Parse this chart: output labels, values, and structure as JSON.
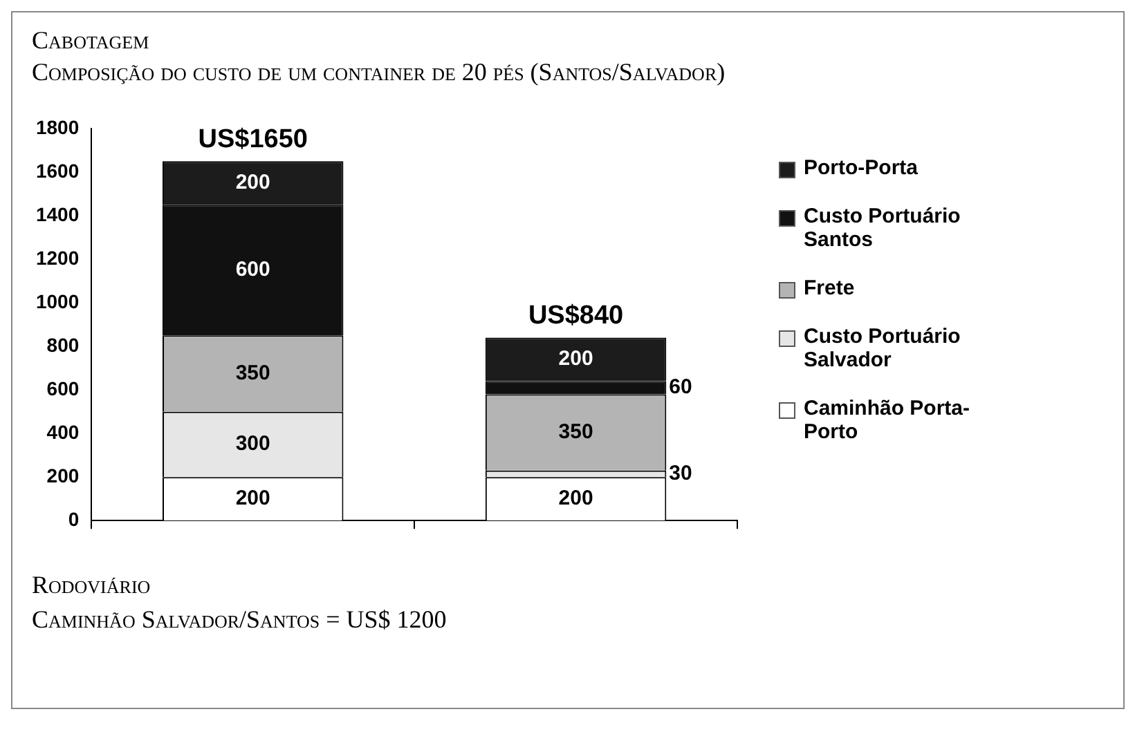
{
  "chart_data": {
    "type": "bar",
    "title": "Cabotagem",
    "subtitle": "Composição do custo de um container de 20 pés (Santos/Salvador)",
    "categories": [
      null,
      null
    ],
    "stacked": true,
    "series": [
      {
        "name": "Caminhão Porta-Porto",
        "color": "#ffffff",
        "values": [
          200,
          200
        ]
      },
      {
        "name": "Custo Portuário Salvador",
        "color": "#e6e6e6",
        "values": [
          300,
          30
        ]
      },
      {
        "name": "Frete",
        "color": "#b4b4b4",
        "values": [
          350,
          350
        ]
      },
      {
        "name": "Custo Portuário Santos",
        "color": "#111111",
        "values": [
          600,
          60
        ]
      },
      {
        "name": "Porto-Porta",
        "color": "#1c1c1c",
        "values": [
          200,
          200
        ]
      }
    ],
    "ylim": [
      0,
      1800
    ],
    "yticks": [
      0,
      200,
      400,
      600,
      800,
      1000,
      1200,
      1400,
      1600,
      1800
    ],
    "grid": false,
    "legend": "right",
    "data_labels": true,
    "totals": [
      "US$1650",
      "US$840"
    ],
    "annotations": [
      "Rodoviário",
      "Caminhão Salvador/Santos = US$ 1200"
    ]
  }
}
